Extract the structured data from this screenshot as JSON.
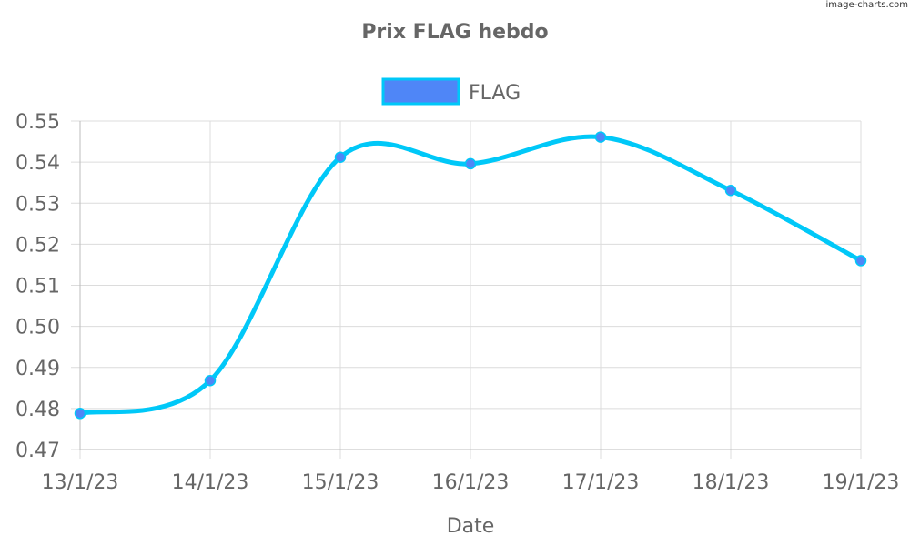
{
  "watermark": "image-charts.com",
  "chart_data": {
    "type": "line",
    "title": "Prix FLAG hebdo",
    "xlabel": "Date",
    "ylabel": "",
    "categories": [
      "13/1/23",
      "14/1/23",
      "15/1/23",
      "16/1/23",
      "17/1/23",
      "18/1/23",
      "19/1/23"
    ],
    "series": [
      {
        "name": "FLAG",
        "values": [
          0.4788,
          0.4868,
          0.5412,
          0.5396,
          0.5461,
          0.5331,
          0.516
        ]
      }
    ],
    "ylim": [
      0.47,
      0.55
    ],
    "yticks": [
      "0.47",
      "0.48",
      "0.49",
      "0.50",
      "0.51",
      "0.52",
      "0.53",
      "0.54",
      "0.55"
    ],
    "grid": true,
    "legend_position": "top",
    "colors": {
      "line": "#00c8f8",
      "point": "#4f86f7",
      "legend_fill": "#4f86f7",
      "grid": "#dcdcdc",
      "text": "#666666"
    }
  }
}
